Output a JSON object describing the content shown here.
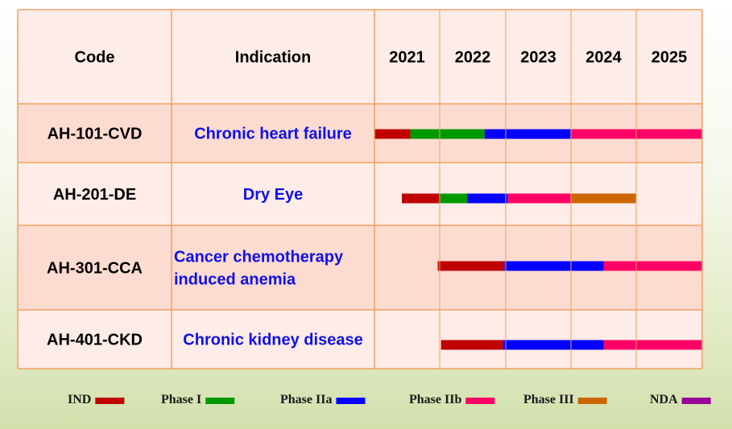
{
  "chart_data": {
    "type": "table",
    "columns": [
      "Code",
      "Indication",
      "2021",
      "2022",
      "2023",
      "2024",
      "2025"
    ],
    "years": [
      "2021",
      "2022",
      "2023",
      "2024",
      "2025"
    ],
    "year_start": 2021,
    "year_end": 2026,
    "rows": [
      {
        "code": "AH-101-CVD",
        "indication": [
          "Chronic heart failure"
        ],
        "phases": [
          {
            "phase": "IND",
            "start": 2021.0,
            "end": 2021.55
          },
          {
            "phase": "Phase I",
            "start": 2021.55,
            "end": 2022.68
          },
          {
            "phase": "Phase IIa",
            "start": 2022.68,
            "end": 2024.0
          },
          {
            "phase": "Phase IIb",
            "start": 2024.0,
            "end": 2026.0
          }
        ]
      },
      {
        "code": "AH-201-DE",
        "indication": [
          "Dry Eye"
        ],
        "phases": [
          {
            "phase": "IND",
            "start": 2021.42,
            "end": 2022.0
          },
          {
            "phase": "Phase I",
            "start": 2022.0,
            "end": 2022.42
          },
          {
            "phase": "Phase IIa",
            "start": 2022.42,
            "end": 2023.03
          },
          {
            "phase": "Phase IIb",
            "start": 2023.03,
            "end": 2024.0
          },
          {
            "phase": "Phase III",
            "start": 2024.0,
            "end": 2025.0
          }
        ]
      },
      {
        "code": "AH-301-CCA",
        "indication": [
          "Cancer chemotherapy",
          "induced anemia"
        ],
        "phases": [
          {
            "phase": "IND",
            "start": 2021.97,
            "end": 2022.98
          },
          {
            "phase": "Phase IIa",
            "start": 2022.98,
            "end": 2024.5
          },
          {
            "phase": "Phase IIb",
            "start": 2024.5,
            "end": 2026.0
          }
        ]
      },
      {
        "code": "AH-401-CKD",
        "indication": [
          "Chronic kidney disease"
        ],
        "phases": [
          {
            "phase": "IND",
            "start": 2022.02,
            "end": 2022.96
          },
          {
            "phase": "Phase IIa",
            "start": 2022.96,
            "end": 2024.5
          },
          {
            "phase": "Phase IIb",
            "start": 2024.5,
            "end": 2026.0
          }
        ]
      }
    ],
    "legend": [
      {
        "label": "IND",
        "color": "#c00000"
      },
      {
        "label": "Phase I",
        "color": "#009900"
      },
      {
        "label": "Phase IIa",
        "color": "#0000ff"
      },
      {
        "label": "Phase IIb",
        "color": "#ff0066"
      },
      {
        "label": "Phase III",
        "color": "#cc6600"
      },
      {
        "label": "NDA",
        "color": "#990099"
      }
    ],
    "legend_position": "bottom"
  },
  "colors": {
    "grid": "#f0a060",
    "header_bg": "#fdece7",
    "row_odd_bg": "#fcdcd0",
    "row_even_bg": "#fdece7",
    "code_text": "#000000",
    "indication_text": "#1010e8"
  }
}
